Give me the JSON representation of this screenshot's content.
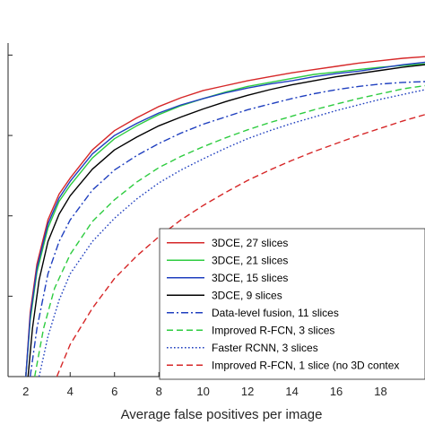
{
  "chart_data": {
    "type": "line",
    "title": "",
    "xlabel": "Average false positives per image",
    "ylabel": "",
    "xlim": [
      1.2,
      20.0
    ],
    "ylim": [
      0.5,
      0.915
    ],
    "xticks": [
      2,
      4,
      6,
      8,
      10,
      12,
      14,
      16,
      18
    ],
    "yticks": [
      0.5,
      0.6,
      0.7,
      0.8,
      0.9
    ],
    "ytick_labels_visible": false,
    "grid": false,
    "legend_position": "lower-right",
    "series": [
      {
        "name": "3DCE, 27 slices",
        "color": "#d62728",
        "style": "solid",
        "points": [
          [
            2.0,
            0.5
          ],
          [
            2.2,
            0.58
          ],
          [
            2.5,
            0.64
          ],
          [
            3,
            0.695
          ],
          [
            3.5,
            0.727
          ],
          [
            4,
            0.747
          ],
          [
            5,
            0.782
          ],
          [
            6,
            0.806
          ],
          [
            7,
            0.822
          ],
          [
            8,
            0.836
          ],
          [
            9,
            0.847
          ],
          [
            10,
            0.856
          ],
          [
            11,
            0.862
          ],
          [
            12,
            0.868
          ],
          [
            13,
            0.873
          ],
          [
            14,
            0.878
          ],
          [
            15,
            0.882
          ],
          [
            16,
            0.886
          ],
          [
            17,
            0.89
          ],
          [
            18,
            0.893
          ],
          [
            19,
            0.896
          ],
          [
            20,
            0.898
          ]
        ]
      },
      {
        "name": "3DCE, 21 slices",
        "color": "#2ecc40",
        "style": "solid",
        "points": [
          [
            2.0,
            0.5
          ],
          [
            2.2,
            0.57
          ],
          [
            2.5,
            0.63
          ],
          [
            3,
            0.685
          ],
          [
            3.5,
            0.718
          ],
          [
            4,
            0.738
          ],
          [
            5,
            0.772
          ],
          [
            6,
            0.796
          ],
          [
            7,
            0.812
          ],
          [
            8,
            0.826
          ],
          [
            9,
            0.837
          ],
          [
            10,
            0.846
          ],
          [
            11,
            0.854
          ],
          [
            12,
            0.861
          ],
          [
            13,
            0.866
          ],
          [
            14,
            0.871
          ],
          [
            15,
            0.876
          ],
          [
            16,
            0.879
          ],
          [
            17,
            0.882
          ],
          [
            18,
            0.885
          ],
          [
            19,
            0.887
          ],
          [
            20,
            0.889
          ]
        ]
      },
      {
        "name": "3DCE, 15 slices",
        "color": "#1f3fbf",
        "style": "solid",
        "points": [
          [
            2.0,
            0.5
          ],
          [
            2.2,
            0.575
          ],
          [
            2.5,
            0.635
          ],
          [
            3,
            0.69
          ],
          [
            3.5,
            0.722
          ],
          [
            4,
            0.743
          ],
          [
            5,
            0.777
          ],
          [
            6,
            0.8
          ],
          [
            7,
            0.815
          ],
          [
            8,
            0.828
          ],
          [
            9,
            0.838
          ],
          [
            10,
            0.846
          ],
          [
            11,
            0.853
          ],
          [
            12,
            0.859
          ],
          [
            13,
            0.864
          ],
          [
            14,
            0.868
          ],
          [
            15,
            0.873
          ],
          [
            16,
            0.877
          ],
          [
            17,
            0.88
          ],
          [
            18,
            0.884
          ],
          [
            19,
            0.888
          ],
          [
            20,
            0.891
          ]
        ]
      },
      {
        "name": "3DCE, 9 slices",
        "color": "#000000",
        "style": "solid",
        "points": [
          [
            2.1,
            0.5
          ],
          [
            2.3,
            0.56
          ],
          [
            2.6,
            0.62
          ],
          [
            3,
            0.668
          ],
          [
            3.5,
            0.702
          ],
          [
            4,
            0.725
          ],
          [
            5,
            0.758
          ],
          [
            6,
            0.782
          ],
          [
            7,
            0.798
          ],
          [
            8,
            0.812
          ],
          [
            9,
            0.823
          ],
          [
            10,
            0.833
          ],
          [
            11,
            0.842
          ],
          [
            12,
            0.85
          ],
          [
            13,
            0.857
          ],
          [
            14,
            0.863
          ],
          [
            15,
            0.868
          ],
          [
            16,
            0.873
          ],
          [
            17,
            0.877
          ],
          [
            18,
            0.881
          ],
          [
            19,
            0.885
          ],
          [
            20,
            0.888
          ]
        ]
      },
      {
        "name": "Data-level fusion, 11 slices",
        "color": "#1f3fbf",
        "style": "dashdot",
        "points": [
          [
            2.2,
            0.5
          ],
          [
            2.5,
            0.56
          ],
          [
            3,
            0.628
          ],
          [
            3.5,
            0.668
          ],
          [
            4,
            0.695
          ],
          [
            5,
            0.732
          ],
          [
            6,
            0.757
          ],
          [
            7,
            0.775
          ],
          [
            8,
            0.79
          ],
          [
            9,
            0.803
          ],
          [
            10,
            0.814
          ],
          [
            11,
            0.823
          ],
          [
            12,
            0.832
          ],
          [
            13,
            0.839
          ],
          [
            14,
            0.846
          ],
          [
            15,
            0.852
          ],
          [
            16,
            0.857
          ],
          [
            17,
            0.861
          ],
          [
            18,
            0.864
          ],
          [
            19,
            0.866
          ],
          [
            20,
            0.867
          ]
        ]
      },
      {
        "name": "Improved R-FCN, 3 slices",
        "color": "#2ecc40",
        "style": "dashed",
        "points": [
          [
            2.4,
            0.5
          ],
          [
            2.8,
            0.56
          ],
          [
            3.3,
            0.61
          ],
          [
            4,
            0.652
          ],
          [
            5,
            0.693
          ],
          [
            6,
            0.72
          ],
          [
            7,
            0.742
          ],
          [
            8,
            0.76
          ],
          [
            9,
            0.774
          ],
          [
            10,
            0.786
          ],
          [
            11,
            0.797
          ],
          [
            12,
            0.807
          ],
          [
            13,
            0.816
          ],
          [
            14,
            0.824
          ],
          [
            15,
            0.832
          ],
          [
            16,
            0.839
          ],
          [
            17,
            0.846
          ],
          [
            18,
            0.852
          ],
          [
            19,
            0.858
          ],
          [
            20,
            0.862
          ]
        ]
      },
      {
        "name": "Faster RCNN, 3 slices",
        "color": "#1f3fbf",
        "style": "dotted",
        "points": [
          [
            2.6,
            0.5
          ],
          [
            3,
            0.55
          ],
          [
            3.5,
            0.595
          ],
          [
            4,
            0.628
          ],
          [
            5,
            0.668
          ],
          [
            6,
            0.697
          ],
          [
            7,
            0.721
          ],
          [
            8,
            0.741
          ],
          [
            9,
            0.757
          ],
          [
            10,
            0.771
          ],
          [
            11,
            0.784
          ],
          [
            12,
            0.796
          ],
          [
            13,
            0.806
          ],
          [
            14,
            0.815
          ],
          [
            15,
            0.823
          ],
          [
            16,
            0.831
          ],
          [
            17,
            0.838
          ],
          [
            18,
            0.845
          ],
          [
            19,
            0.851
          ],
          [
            20,
            0.857
          ]
        ]
      },
      {
        "name": "Improved R-FCN, 1 slice (no 3D contex",
        "color": "#d62728",
        "style": "dashed",
        "points": [
          [
            3.4,
            0.5
          ],
          [
            4,
            0.54
          ],
          [
            5,
            0.585
          ],
          [
            6,
            0.622
          ],
          [
            7,
            0.65
          ],
          [
            8,
            0.674
          ],
          [
            9,
            0.695
          ],
          [
            10,
            0.713
          ],
          [
            11,
            0.729
          ],
          [
            12,
            0.744
          ],
          [
            13,
            0.757
          ],
          [
            14,
            0.769
          ],
          [
            15,
            0.78
          ],
          [
            16,
            0.79
          ],
          [
            17,
            0.8
          ],
          [
            18,
            0.809
          ],
          [
            19,
            0.818
          ],
          [
            20,
            0.826
          ]
        ]
      }
    ]
  }
}
